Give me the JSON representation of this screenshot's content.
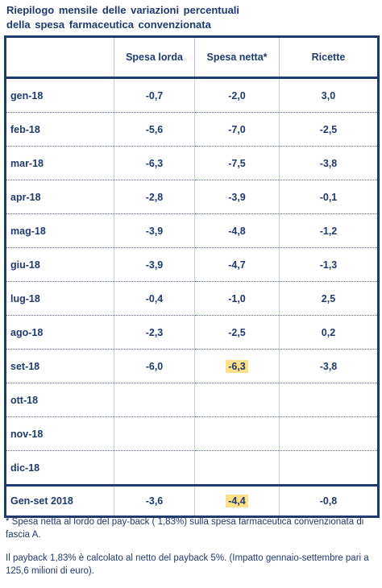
{
  "title": [
    "Riepilogo mensile delle variazioni percentuali",
    "della spesa farmaceutica convenzionata"
  ],
  "table": {
    "columns": [
      "Spesa lorda",
      "Spesa netta*",
      "Ricette"
    ],
    "rows": [
      {
        "label": "gen-18",
        "values": [
          "-0,7",
          "-2,0",
          "3,0"
        ]
      },
      {
        "label": "feb-18",
        "values": [
          "-5,6",
          "-7,0",
          "-2,5"
        ]
      },
      {
        "label": "mar-18",
        "values": [
          "-6,3",
          "-7,5",
          "-3,8"
        ]
      },
      {
        "label": "apr-18",
        "values": [
          "-2,8",
          "-3,9",
          "-0,1"
        ]
      },
      {
        "label": "mag-18",
        "values": [
          "-3,9",
          "-4,8",
          "-1,2"
        ]
      },
      {
        "label": "giu-18",
        "values": [
          "-3,9",
          "-4,7",
          "-1,3"
        ]
      },
      {
        "label": "lug-18",
        "values": [
          "-0,4",
          "-1,0",
          "2,5"
        ]
      },
      {
        "label": "ago-18",
        "values": [
          "-2,3",
          "-2,5",
          "0,2"
        ]
      },
      {
        "label": "set-18",
        "values": [
          "-6,0",
          "-6,3",
          "-3,8"
        ]
      },
      {
        "label": "ott-18",
        "values": [
          null,
          null,
          null
        ]
      },
      {
        "label": "nov-18",
        "values": [
          null,
          null,
          null
        ]
      },
      {
        "label": "dic-18",
        "values": [
          null,
          null,
          null
        ]
      }
    ],
    "total": {
      "label": "Gen-set 2018",
      "values": [
        "-3,6",
        "-4,4",
        "-0,8"
      ]
    }
  },
  "notes": [
    "* Spesa netta al lordo del pay-back ( 1,83%) sulla spesa farmaceutica convenzionata di fascia A.",
    "Il payback 1,83% è calcolato al netto del payback 5%. (Impatto gennaio-settembre pari a 125,6 milioni di euro)."
  ]
}
